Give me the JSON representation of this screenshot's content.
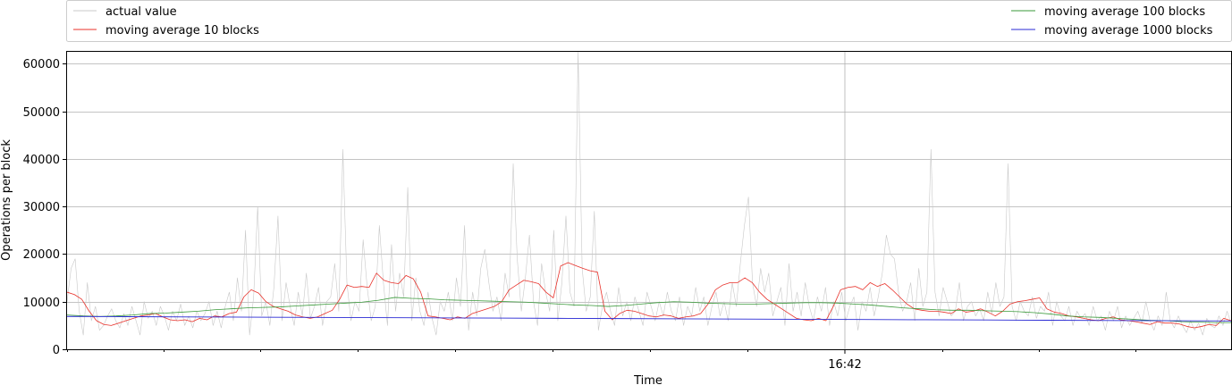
{
  "chart_data": {
    "type": "line",
    "title": "",
    "xlabel": "Time",
    "ylabel": "Operations per block",
    "ylim": [
      0,
      62500
    ],
    "y_ticks": [
      0,
      10000,
      20000,
      30000,
      40000,
      50000,
      60000
    ],
    "x_major_tick_label": "16:42",
    "grid": true,
    "legend_placement": "top (outside plot, two columns)",
    "series": [
      {
        "name": "actual value",
        "color": "#c8c8c8",
        "values": [
          10000,
          17000,
          19000,
          8000,
          3000,
          14000,
          6000,
          9000,
          4000,
          5000,
          7000,
          8500,
          6000,
          4500,
          7500,
          5000,
          9000,
          6000,
          3000,
          10000,
          6500,
          8000,
          5000,
          9000,
          7000,
          4000,
          8000,
          6000,
          9500,
          5000,
          7000,
          4500,
          8000,
          6000,
          7500,
          10000,
          5000,
          8000,
          4500,
          9000,
          12000,
          6000,
          15000,
          8000,
          25000,
          3000,
          11000,
          30000,
          7000,
          10000,
          5000,
          13000,
          28000,
          6000,
          14000,
          9000,
          5000,
          12000,
          7000,
          16000,
          6500,
          9000,
          13000,
          5000,
          10000,
          11000,
          18000,
          8000,
          42000,
          14000,
          6000,
          10000,
          8000,
          23000,
          13000,
          6000,
          9000,
          26000,
          14000,
          5000,
          22000,
          8000,
          16000,
          11000,
          34000,
          6000,
          15000,
          8000,
          5000,
          12000,
          6500,
          3000,
          10000,
          8000,
          12000,
          6000,
          15000,
          9000,
          26000,
          4000,
          12000,
          7000,
          17000,
          21000,
          14000,
          8000,
          11000,
          6000,
          16000,
          11000,
          39000,
          19000,
          8000,
          15000,
          24000,
          10000,
          5000,
          18000,
          12000,
          8000,
          25000,
          6000,
          14000,
          28000,
          12000,
          9000,
          62500,
          17000,
          8000,
          11000,
          29000,
          4000,
          9000,
          12000,
          8000,
          5000,
          13000,
          7000,
          10000,
          6000,
          11000,
          8000,
          5000,
          12000,
          9000,
          6000,
          10000,
          7000,
          12000,
          8000,
          6000,
          11000,
          5000,
          9000,
          7000,
          13000,
          8000,
          11000,
          5000,
          9000,
          12000,
          7000,
          10000,
          6000,
          14000,
          9000,
          18000,
          26000,
          32000,
          14000,
          9000,
          17000,
          12000,
          16000,
          7000,
          10000,
          13000,
          5000,
          18000,
          8000,
          12000,
          7000,
          14000,
          9000,
          6000,
          11000,
          8000,
          13000,
          5000,
          10000,
          7000,
          12000,
          6000,
          9000,
          11000,
          4000,
          10000,
          8000,
          13000,
          7000,
          11000,
          16000,
          24000,
          20000,
          19000,
          12000,
          8000,
          10000,
          14000,
          6000,
          17000,
          9000,
          12000,
          42000,
          12000,
          7000,
          13000,
          10000,
          7000,
          8000,
          14000,
          6000,
          9000,
          10000,
          7000,
          8500,
          6000,
          12000,
          7500,
          14000,
          9000,
          11000,
          39000,
          9000,
          6000,
          10000,
          8000,
          7000,
          11000,
          6500,
          9000,
          8000,
          12000,
          5000,
          10000,
          7000,
          6000,
          9000,
          5000,
          8000,
          6500,
          7500,
          5000,
          9000,
          6000,
          7000,
          4000,
          8000,
          6000,
          9000,
          4500,
          7000,
          5000,
          6500,
          8000,
          5500,
          10000,
          6000,
          4000,
          7000,
          5000,
          12000,
          6000,
          4500,
          7000,
          5000,
          3500,
          6000,
          4000,
          5500,
          3000,
          6500,
          5000,
          4500,
          7000,
          5000,
          8000,
          5500
        ]
      },
      {
        "name": "moving average 10 blocks",
        "color": "#e8312a",
        "values": [
          12000,
          11500,
          10500,
          8000,
          6000,
          5200,
          5000,
          5500,
          6000,
          6500,
          7000,
          7200,
          7500,
          6800,
          6200,
          6000,
          6200,
          5800,
          6500,
          6200,
          7000,
          6800,
          7500,
          7800,
          11000,
          12500,
          11800,
          10000,
          9000,
          8500,
          8000,
          7200,
          6800,
          6500,
          6800,
          7500,
          8200,
          10500,
          13500,
          13000,
          13200,
          13000,
          16000,
          14500,
          14000,
          13800,
          15500,
          14800,
          12000,
          7000,
          6800,
          6500,
          6200,
          6800,
          6500,
          7500,
          8000,
          8500,
          9000,
          10000,
          12500,
          13500,
          14500,
          14200,
          13800,
          12000,
          10800,
          17500,
          18200,
          17600,
          17000,
          16500,
          16200,
          8000,
          6200,
          7500,
          8200,
          8000,
          7500,
          7000,
          6800,
          7200,
          7000,
          6500,
          6800,
          7000,
          7500,
          9500,
          12500,
          13500,
          14000,
          14000,
          15000,
          14000,
          12000,
          10500,
          9500,
          8500,
          7500,
          6500,
          6200,
          6000,
          6500,
          6000,
          9000,
          12500,
          13000,
          13200,
          12500,
          14000,
          13200,
          13800,
          12500,
          11000,
          9500,
          8500,
          8200,
          8000,
          8000,
          7800,
          7500,
          8500,
          7800,
          8000,
          8500,
          7800,
          7000,
          8000,
          9500,
          10000,
          10200,
          10500,
          10800,
          8500,
          7800,
          7500,
          7000,
          6800,
          6500,
          6200,
          6000,
          6500,
          6800,
          6200,
          6000,
          5800,
          5500,
          5200,
          5800,
          5500,
          5500,
          5300,
          4800,
          4500,
          4800,
          5200,
          5000,
          6500,
          6000
        ]
      },
      {
        "name": "moving average 100 blocks",
        "color": "#3a9a3a",
        "values": [
          7200,
          7000,
          6900,
          7000,
          7200,
          7500,
          7600,
          7800,
          8000,
          8300,
          8500,
          8700,
          8800,
          8900,
          9100,
          9300,
          9500,
          9700,
          9900,
          10300,
          10900,
          10700,
          10600,
          10400,
          10300,
          10200,
          10100,
          10000,
          9900,
          9700,
          9500,
          9300,
          9200,
          9000,
          9200,
          9500,
          9800,
          10000,
          9900,
          9700,
          9600,
          9500,
          9500,
          9600,
          9700,
          9800,
          9800,
          9700,
          9500,
          9300,
          9000,
          8700,
          8500,
          8300,
          8200,
          8200,
          8100,
          8000,
          7900,
          7700,
          7400,
          7000,
          6800,
          6700,
          6500,
          6300,
          6100,
          6000,
          5800,
          5700,
          5600,
          5600
        ]
      },
      {
        "name": "moving average 1000 blocks",
        "color": "#2a2ad4",
        "values": [
          6900,
          6850,
          6800,
          6750,
          6700,
          6650,
          6600,
          6550,
          6500,
          6450,
          6400,
          6350,
          6300,
          6250,
          6200,
          6150,
          6100,
          6050,
          6000,
          5950
        ]
      }
    ]
  }
}
